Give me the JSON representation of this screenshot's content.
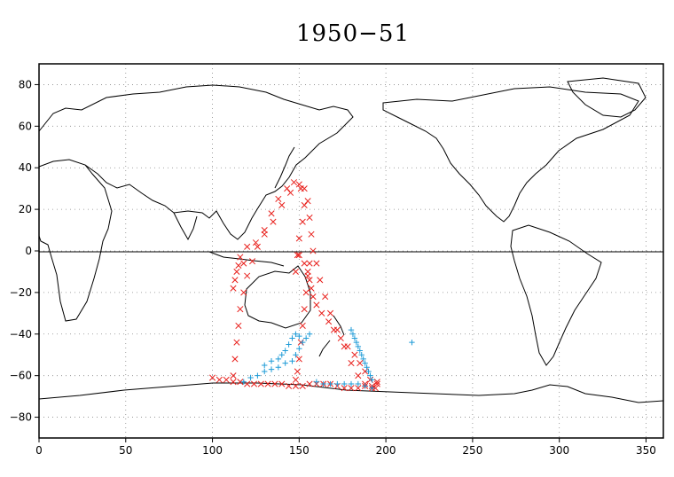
{
  "chart_data": {
    "type": "scatter",
    "title": "1950−51",
    "xlabel": "",
    "ylabel": "",
    "xlim": [
      0,
      360
    ],
    "ylim": [
      -90,
      90
    ],
    "x_ticks": [
      0,
      50,
      100,
      150,
      200,
      250,
      300,
      350
    ],
    "y_ticks": [
      -80,
      -60,
      -40,
      -20,
      0,
      20,
      40,
      60,
      80
    ],
    "x_tick_labels": [
      "0",
      "50",
      "100",
      "150",
      "200",
      "250",
      "300",
      "350"
    ],
    "y_tick_labels": [
      "−80",
      "−60",
      "−40",
      "−20",
      "0",
      "20",
      "40",
      "60",
      "80"
    ],
    "grid": true,
    "colors": {
      "series_a": "#e8201c",
      "series_b": "#1e9bd7",
      "coast": "#000000"
    },
    "series": [
      {
        "marker": "x",
        "color": "#e8201c",
        "x": [
          100,
          104,
          108,
          112,
          116,
          120,
          124,
          128,
          132,
          136,
          140,
          144,
          148,
          152,
          156,
          160,
          164,
          168,
          172,
          176,
          180,
          184,
          188,
          192,
          195,
          112,
          113,
          114,
          115,
          116,
          118,
          120,
          123,
          126,
          130,
          134,
          138,
          143,
          147,
          151,
          153,
          152,
          150,
          149,
          148,
          120,
          125,
          130,
          135,
          140,
          145,
          150,
          153,
          155,
          156,
          157,
          158,
          160,
          162,
          165,
          168,
          172,
          176,
          180,
          184,
          188,
          192,
          195,
          156,
          155,
          154,
          153,
          152,
          151,
          150,
          149,
          148,
          150,
          153,
          155,
          156,
          157,
          158,
          160,
          163,
          167,
          170,
          174,
          178,
          182,
          185,
          188,
          191,
          194,
          118,
          116,
          115,
          114,
          113,
          112
        ],
        "y": [
          -61,
          -62,
          -62,
          -63,
          -63,
          -64,
          -64,
          -64,
          -64,
          -64,
          -64,
          -65,
          -65,
          -65,
          -64,
          -64,
          -64,
          -64,
          -65,
          -66,
          -66,
          -66,
          -65,
          -65,
          -64,
          -60,
          -52,
          -44,
          -36,
          -28,
          -20,
          -12,
          -5,
          2,
          10,
          18,
          25,
          30,
          33,
          30,
          22,
          14,
          6,
          -2,
          -10,
          2,
          4,
          8,
          14,
          22,
          28,
          32,
          30,
          24,
          16,
          8,
          0,
          -6,
          -14,
          -22,
          -30,
          -38,
          -46,
          -54,
          -60,
          -64,
          -66,
          -63,
          -6,
          -12,
          -20,
          -28,
          -36,
          -44,
          -52,
          -58,
          -62,
          -2,
          -6,
          -10,
          -14,
          -18,
          -22,
          -26,
          -30,
          -34,
          -38,
          -42,
          -46,
          -50,
          -54,
          -58,
          -62,
          -66,
          -6,
          -3,
          -7,
          -10,
          -14,
          -18
        ]
      },
      {
        "marker": "+",
        "color": "#1e9bd7",
        "x": [
          118,
          122,
          126,
          130,
          134,
          138,
          142,
          146,
          148,
          150,
          152,
          154,
          156,
          160,
          164,
          168,
          172,
          176,
          180,
          184,
          188,
          192,
          180,
          182,
          184,
          186,
          188,
          190,
          192,
          181,
          183,
          185,
          187,
          189,
          191,
          144,
          146,
          148,
          150,
          140,
          142,
          130,
          134,
          138,
          215
        ],
        "y": [
          -63,
          -61,
          -60,
          -58,
          -57,
          -56,
          -54,
          -53,
          -50,
          -47,
          -44,
          -42,
          -40,
          -63,
          -64,
          -64,
          -64,
          -64,
          -64,
          -64,
          -65,
          -66,
          -38,
          -42,
          -46,
          -50,
          -54,
          -58,
          -62,
          -40,
          -44,
          -48,
          -52,
          -56,
          -60,
          -45,
          -42,
          -40,
          -41,
          -50,
          -48,
          -55,
          -53,
          -52,
          -44
        ]
      }
    ]
  }
}
